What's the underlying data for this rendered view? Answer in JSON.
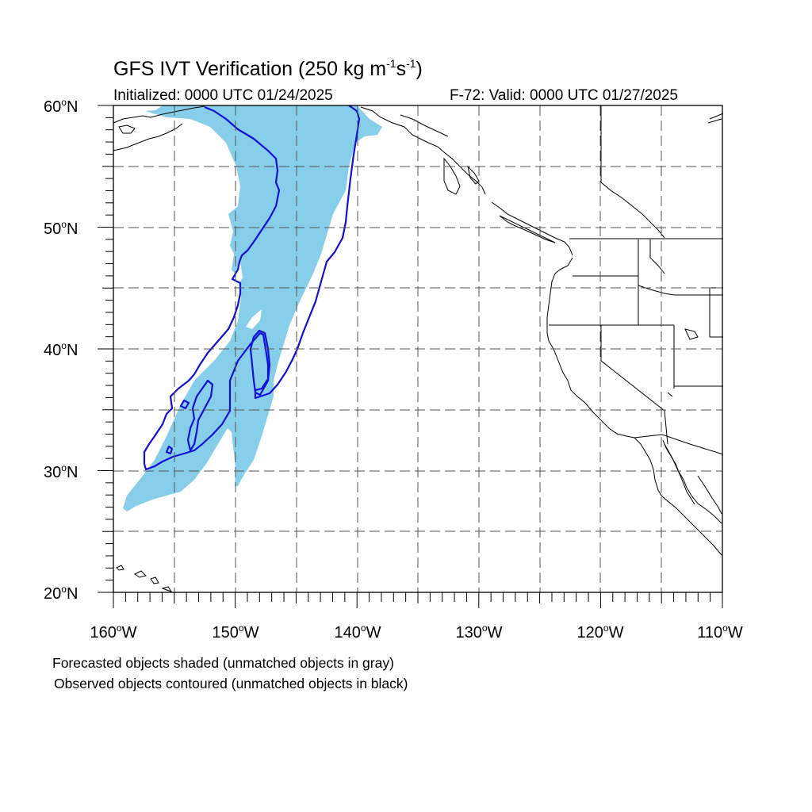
{
  "header": {
    "title_main": "GFS IVT Verification (250 kg m",
    "title_sup1": "-1",
    "title_mid": "s",
    "title_sup2": "-1",
    "title_end": ")",
    "initialized": "Initialized: 0000 UTC 01/24/2025",
    "valid": "F-72: Valid: 0000 UTC 01/27/2025"
  },
  "axes": {
    "lat_labels": [
      {
        "value": "60",
        "unit": "N"
      },
      {
        "value": "50",
        "unit": "N"
      },
      {
        "value": "40",
        "unit": "N"
      },
      {
        "value": "30",
        "unit": "N"
      },
      {
        "value": "20",
        "unit": "N"
      }
    ],
    "lon_labels": [
      {
        "value": "160",
        "unit": "W"
      },
      {
        "value": "150",
        "unit": "W"
      },
      {
        "value": "140",
        "unit": "W"
      },
      {
        "value": "130",
        "unit": "W"
      },
      {
        "value": "120",
        "unit": "W"
      },
      {
        "value": "110",
        "unit": "W"
      }
    ],
    "degree_symbol": "o",
    "lat_range": [
      20,
      60
    ],
    "lon_range": [
      -160,
      -110
    ],
    "grid": "dashed, every 5 degrees"
  },
  "legend": {
    "line1": "Forecasted objects shaded (unmatched objects in gray)",
    "line2": "Observed objects contoured (unmatched objects in black)"
  },
  "colors": {
    "forecast_fill": "#87ceeb",
    "observed_contour": "#1010d8",
    "coastline": "#000000",
    "grid": "#555555"
  }
}
